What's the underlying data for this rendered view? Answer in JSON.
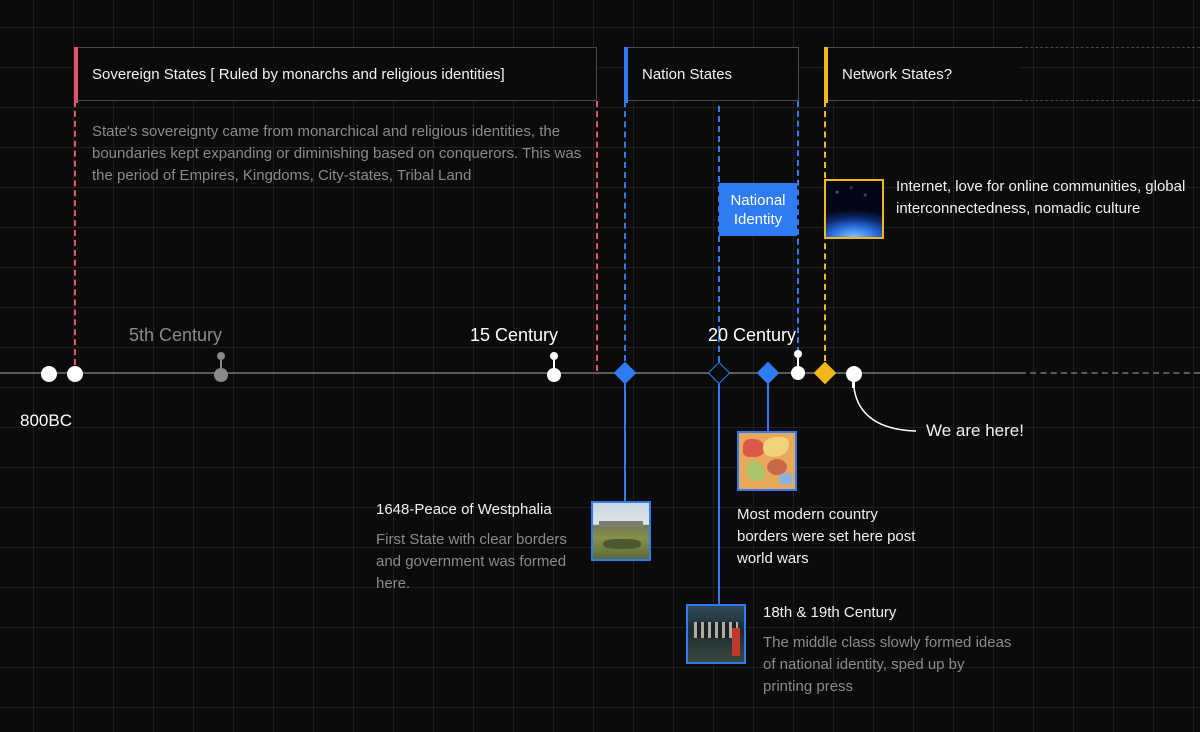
{
  "eras": {
    "sovereign": {
      "label": "Sovereign States [ Ruled by monarchs and religious identities]",
      "description": "State's sovereignty came from monarchical and religious identities, the boundaries kept expanding or diminishing based on conquerors. This was the period of Empires, Kingdoms, City-states, Tribal Land",
      "color": "#e0546d"
    },
    "nation": {
      "label": "Nation States",
      "color": "#2f7cf2"
    },
    "network": {
      "label": "Network States?",
      "description": "Internet, love for online communities, global interconnectedness, nomadic culture",
      "color": "#f2b71d"
    }
  },
  "national_identity": {
    "line1": "National",
    "line2": "Identity"
  },
  "timeline": {
    "start_label": "800BC",
    "centuries": {
      "fifth": "5th Century",
      "fifteenth": "15 Century",
      "twentieth": "20 Century"
    },
    "marker_label": "We are here!"
  },
  "events": {
    "westphalia": {
      "title": "1648-Peace of Westphalia",
      "description": "First State with clear borders and government was formed here."
    },
    "world_wars": {
      "description": "Most modern country borders were set here post world wars"
    },
    "middle_class": {
      "title": "18th & 19th Century",
      "description": "The middle class slowly formed ideas of national identity, sped up by printing press"
    }
  }
}
